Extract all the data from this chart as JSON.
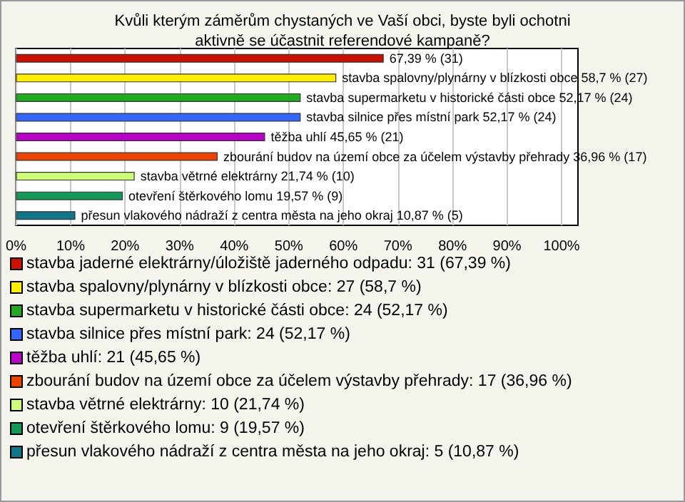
{
  "chart_data": {
    "type": "bar",
    "orientation": "horizontal",
    "stacked": true,
    "title": "Kvůli kterým záměrům chystaných ve Vaší obci, byste byli ochotni\naktivně se účastnit referendové kampaně?",
    "categories": [
      null,
      null,
      null,
      null,
      null,
      null,
      null,
      null,
      null
    ],
    "series": [
      {
        "name": "stavba jaderné elektrárny/úložiště jaderného odpadu: 31 (67,39 %)",
        "color": "#cc1100",
        "values": [
          67.39,
          null,
          null,
          null,
          null,
          null,
          null,
          null,
          null
        ],
        "value_labels": [
          "67,39 % (31)",
          null,
          null,
          null,
          null,
          null,
          null,
          null,
          null
        ]
      },
      {
        "name": "stavba spalovny/plynárny v blízkosti obce: 27 (58,7 %)",
        "color": "#ffee00",
        "values": [
          null,
          58.7,
          null,
          null,
          null,
          null,
          null,
          null,
          null
        ],
        "value_labels": [
          null,
          "stavba spalovny/plynárny v blízkosti obce 58,7 % (27)",
          null,
          null,
          null,
          null,
          null,
          null,
          null
        ]
      },
      {
        "name": "stavba supermarketu v historické části obce: 24 (52,17 %)",
        "color": "#22aa22",
        "values": [
          null,
          null,
          52.17,
          null,
          null,
          null,
          null,
          null,
          null
        ],
        "value_labels": [
          null,
          null,
          "stavba supermarketu v historické části obce 52,17 % (24)",
          null,
          null,
          null,
          null,
          null,
          null
        ]
      },
      {
        "name": "stavba silnice přes místní park: 24 (52,17 %)",
        "color": "#3366ff",
        "values": [
          null,
          null,
          null,
          52.17,
          null,
          null,
          null,
          null,
          null
        ],
        "value_labels": [
          null,
          null,
          null,
          "stavba silnice přes místní park 52,17 % (24)",
          null,
          null,
          null,
          null,
          null
        ]
      },
      {
        "name": "těžba uhlí: 21 (45,65 %)",
        "color": "#bb00cc",
        "values": [
          null,
          null,
          null,
          null,
          45.65,
          null,
          null,
          null,
          null
        ],
        "value_labels": [
          null,
          null,
          null,
          null,
          "těžba uhlí 45,65 % (21)",
          null,
          null,
          null,
          null
        ]
      },
      {
        "name": "zbourání budov na území obce za účelem výstavby přehrady: 17 (36,96 %)",
        "color": "#ee4400",
        "values": [
          null,
          null,
          null,
          null,
          null,
          36.96,
          null,
          null,
          null
        ],
        "value_labels": [
          null,
          null,
          null,
          null,
          null,
          "zbourání budov na území obce za účelem výstavby přehrady 36,96 % (17)",
          null,
          null,
          null
        ]
      },
      {
        "name": "stavba větrné elektrárny: 10 (21,74 %)",
        "color": "#ccff77",
        "values": [
          null,
          null,
          null,
          null,
          null,
          null,
          21.74,
          null,
          null
        ],
        "value_labels": [
          null,
          null,
          null,
          null,
          null,
          null,
          "stavba větrné elektrárny 21,74 % (10)",
          null,
          null
        ]
      },
      {
        "name": "otevření štěrkového lomu: 9 (19,57 %)",
        "color": "#119955",
        "values": [
          null,
          null,
          null,
          null,
          null,
          null,
          null,
          19.57,
          null
        ],
        "value_labels": [
          null,
          null,
          null,
          null,
          null,
          null,
          null,
          "otevření štěrkového lomu 19,57 % (9)",
          null
        ]
      },
      {
        "name": "přesun vlakového nádraží z centra města na jeho okraj: 5 (10,87 %)",
        "color": "#117788",
        "values": [
          null,
          null,
          null,
          null,
          null,
          null,
          null,
          null,
          10.87
        ],
        "value_labels": [
          null,
          null,
          null,
          null,
          null,
          null,
          null,
          null,
          "přesun vlakového nádraží z centra města na jeho okraj 10,87 % (5)"
        ]
      }
    ],
    "xlim": [
      0,
      103
    ],
    "xticks": [
      {
        "value": 0,
        "label": "0%"
      },
      {
        "value": 10,
        "label": "10%"
      },
      {
        "value": 20,
        "label": "20%"
      },
      {
        "value": 30,
        "label": "30%"
      },
      {
        "value": 40,
        "label": "40%"
      },
      {
        "value": 50,
        "label": "50%"
      },
      {
        "value": 60,
        "label": "60%"
      },
      {
        "value": 70,
        "label": "70%"
      },
      {
        "value": 80,
        "label": "80%"
      },
      {
        "value": 90,
        "label": "90%"
      },
      {
        "value": 100,
        "label": "100%"
      }
    ],
    "tick_labels": "x",
    "grid": "x",
    "legend": "bottom"
  }
}
